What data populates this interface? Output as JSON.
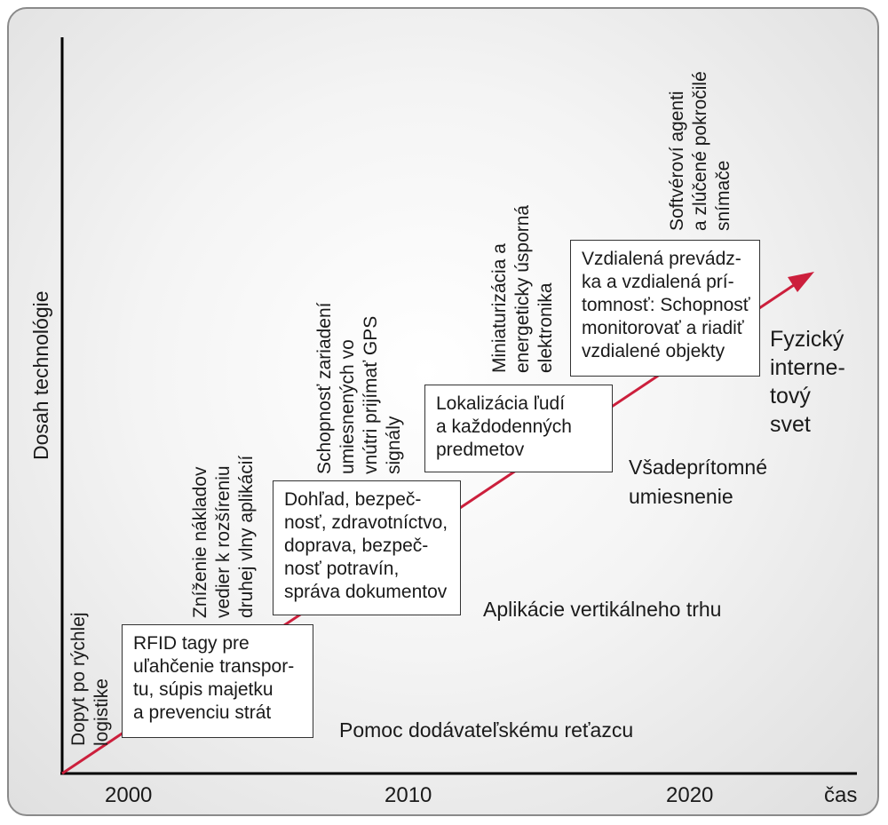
{
  "axes": {
    "y_label": "Dosah technológie",
    "x_label": "čas",
    "ticks": [
      "2000",
      "2010",
      "2020"
    ]
  },
  "colors": {
    "arrow": "#cc1f3c",
    "axis": "#000000",
    "box_border": "#333333"
  },
  "boxes": {
    "rfid": [
      "RFID tagy pre",
      "uľahčenie transpor-",
      "tu, súpis majetku",
      "a prevenciu strát"
    ],
    "dohlad": [
      "Dohľad, bezpeč-",
      "nosť, zdravotníctvo,",
      "doprava, bezpeč-",
      "nosť potravín,",
      "správa dokumentov"
    ],
    "lokalizacia": [
      "Lokalizácia ľudí",
      "a každodenných",
      "predmetov"
    ],
    "vzdialena": [
      "Vzdialená prevádz-",
      "ka a vzdialená prí-",
      "tomnosť: Schopnosť",
      "monitorovať a riadiť",
      "vzdialené objekty"
    ]
  },
  "stages": {
    "pomoc": "Pomoc dodávateľskému reťazcu",
    "aplikacie": "Aplikácie vertikálneho trhu",
    "vsadepritomne": [
      "Všadeprítomné",
      "umiesnenie"
    ],
    "fyzicky": [
      "Fyzický",
      "interne-",
      "tový",
      "svet"
    ]
  },
  "drivers": {
    "dopyt": [
      "Dopyt po rýchlej",
      "logistike"
    ],
    "znizenie": [
      "Zníženie nákladov",
      "vedier k rozšíreniu",
      "druhej vlny aplikácií"
    ],
    "schopnost": [
      "Schopnosť zariadení",
      "umiesnených vo",
      "vnútri prijímať GPS",
      "signály"
    ],
    "miniaturizacia": [
      "Miniaturizácia a",
      "energeticky úsporná",
      "elektronika"
    ],
    "softverovi": [
      "Softvéroví agenti",
      "a zlúčené pokročilé",
      "snímače"
    ]
  }
}
